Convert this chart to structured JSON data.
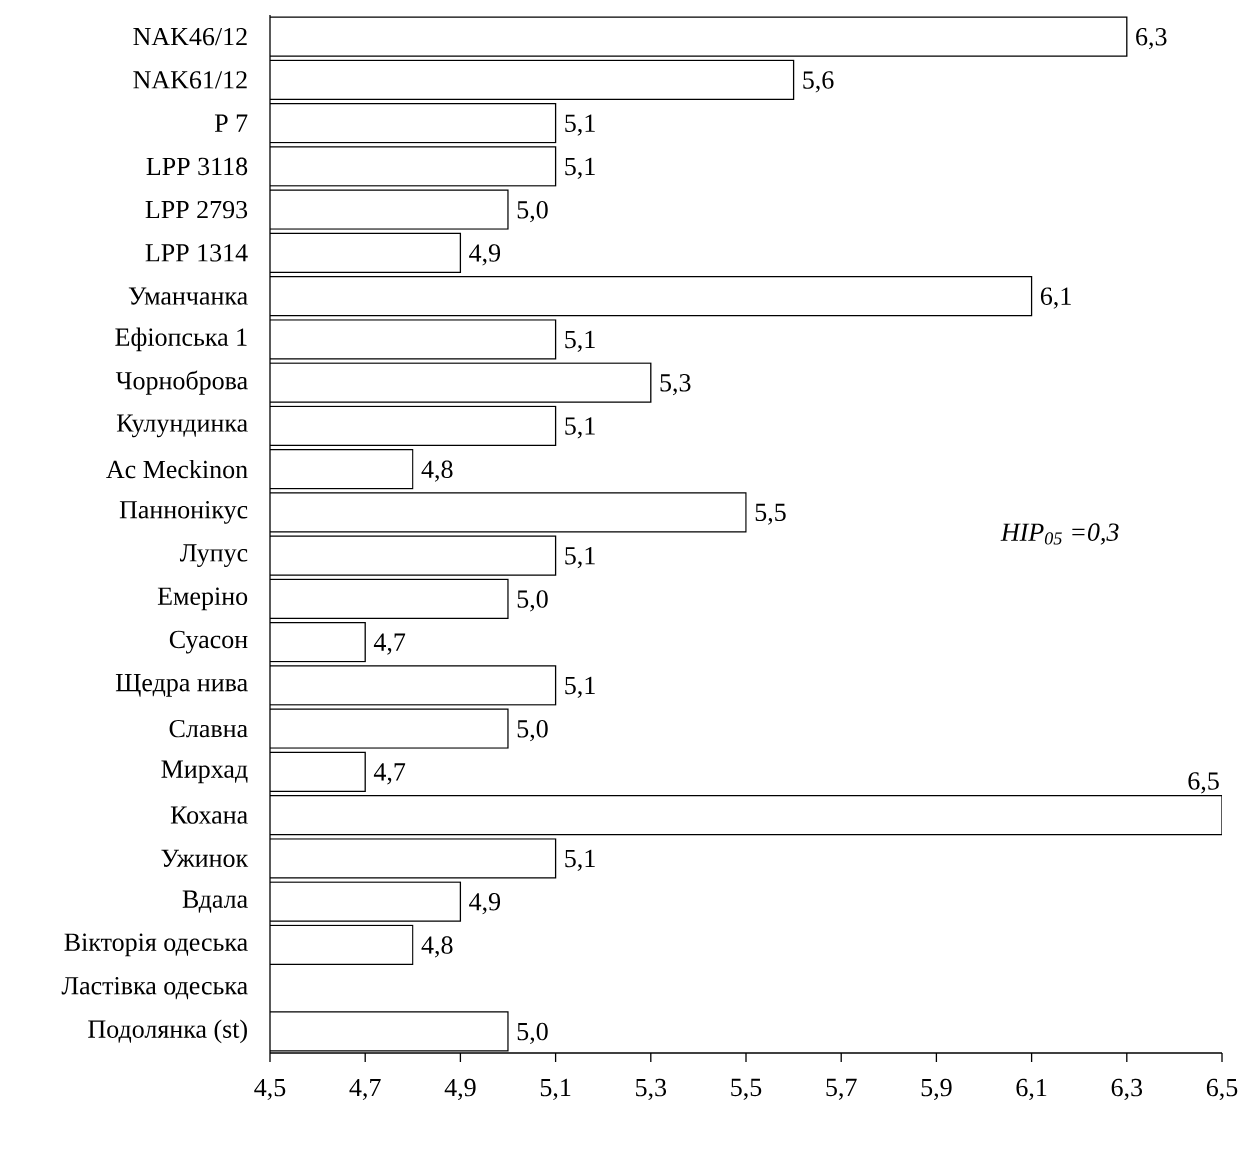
{
  "chart_data": {
    "type": "bar",
    "orientation": "horizontal",
    "categories": [
      "NAK46/12",
      "NAK61/12",
      "P 7",
      "LPP 3118",
      "LPP 2793",
      "LPP 1314",
      "Уманчанка",
      "Ефіопська 1",
      "Чорноброва",
      "Кулундинка",
      "Ac Meckinon",
      "Паннонікус",
      "Лупус",
      "Емеріно",
      "Суасон",
      "Щедра нива",
      "Славна",
      "Мирхад",
      "Кохана",
      "Ужинок",
      "Вдала",
      "Вікторія одеська",
      "Ластівка одеська",
      "Подолянка (st)"
    ],
    "values": [
      6.3,
      5.6,
      5.1,
      5.1,
      5.0,
      4.9,
      6.1,
      5.1,
      5.3,
      5.1,
      4.8,
      5.5,
      5.1,
      5.0,
      4.7,
      5.1,
      5.0,
      4.7,
      6.5,
      5.1,
      4.9,
      4.8,
      null,
      5.0
    ],
    "value_labels": [
      "6,3",
      "5,6",
      "5,1",
      "5,1",
      "5,0",
      "4,9",
      "6,1",
      "5,1",
      "5,3",
      "5,1",
      "4,8",
      "5,5",
      "5,1",
      "5,0",
      "4,7",
      "5,1",
      "5,0",
      "4,7",
      "6,5",
      "5,1",
      "4,9",
      "4,8",
      null,
      "5,0"
    ],
    "color": "#ffffff",
    "xlim": [
      4.5,
      6.5
    ],
    "xticks": [
      {
        "value": 4.5,
        "label": "4,5"
      },
      {
        "value": 4.7,
        "label": "4,7"
      },
      {
        "value": 4.9,
        "label": "4,9"
      },
      {
        "value": 5.1,
        "label": "5,1"
      },
      {
        "value": 5.3,
        "label": "5,3"
      },
      {
        "value": 5.5,
        "label": "5,5"
      },
      {
        "value": 5.7,
        "label": "5,7"
      },
      {
        "value": 5.9,
        "label": "5,9"
      },
      {
        "value": 6.1,
        "label": "6,1"
      },
      {
        "value": 6.3,
        "label": "6,3"
      },
      {
        "value": 6.5,
        "label": "6,5"
      }
    ],
    "annotations": [
      "HIP$_{05}$ =0,3"
    ],
    "grid": false
  }
}
